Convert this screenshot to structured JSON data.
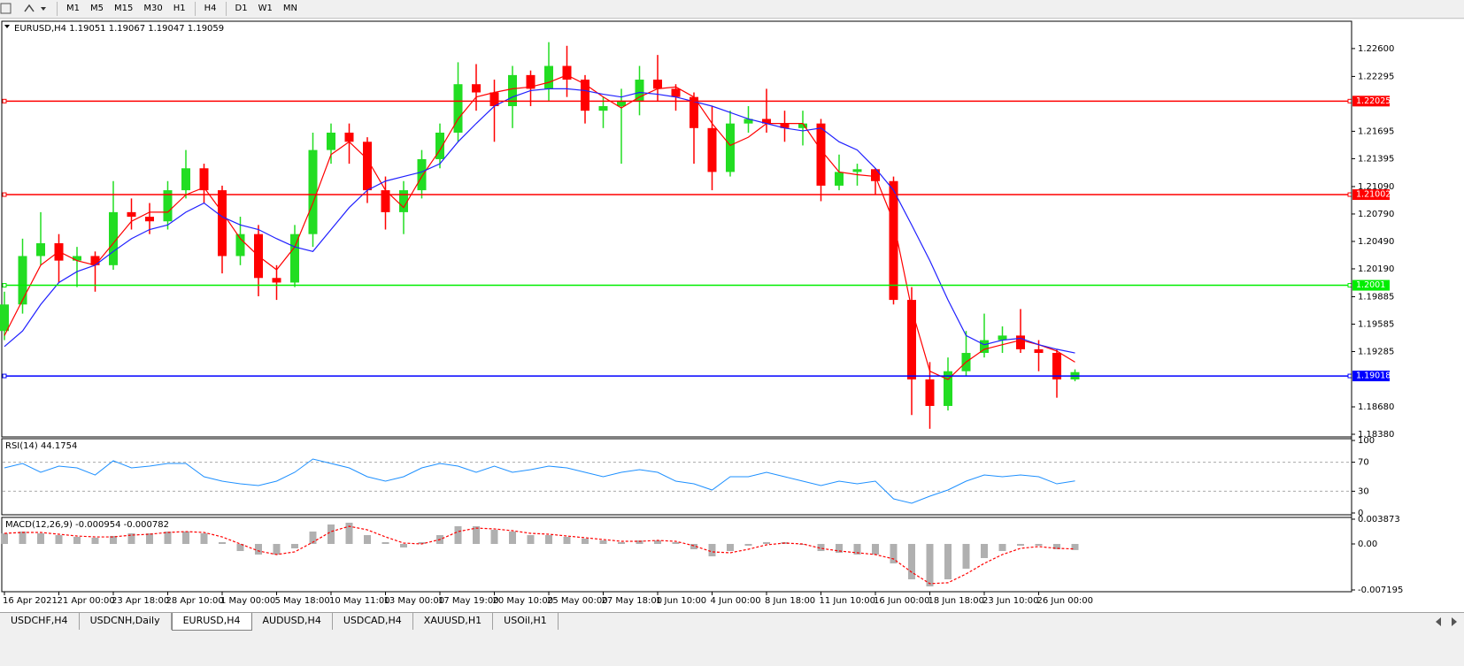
{
  "toolbar": {
    "timeframes": [
      "M1",
      "M5",
      "M15",
      "M30",
      "H1",
      "H4",
      "D1",
      "W1",
      "MN"
    ]
  },
  "tabs": {
    "items": [
      "USDCHF,H4",
      "USDCNH,Daily",
      "EURUSD,H4",
      "AUDUSD,H4",
      "USDCAD,H4",
      "XAUUSD,H1",
      "USOil,H1"
    ],
    "active": 2
  },
  "chart_data": [
    {
      "type": "candlestick",
      "title": "EURUSD,H4  1.19051 1.19067 1.19047 1.19059",
      "categories": [
        "16 Apr 2021",
        null,
        null,
        "21 Apr 00:00",
        null,
        null,
        "23 Apr 18:00",
        null,
        null,
        "28 Apr 10:00",
        null,
        null,
        "1 May 00:00",
        null,
        null,
        "5 May 18:00",
        null,
        null,
        "10 May 11:00",
        null,
        null,
        "13 May 00:00",
        null,
        null,
        "17 May 19:00",
        null,
        null,
        "20 May 10:00",
        null,
        null,
        "25 May 00:00",
        null,
        null,
        "27 May 18:00",
        null,
        null,
        "1 Jun 10:00",
        null,
        null,
        "4 Jun 00:00",
        null,
        null,
        "8 Jun 18:00",
        null,
        null,
        "11 Jun 10:00",
        null,
        null,
        "16 Jun 00:00",
        null,
        null,
        "18 Jun 18:00",
        null,
        null,
        "23 Jun 10:00",
        null,
        null,
        "26 Jun 00:00",
        null,
        null
      ],
      "open": [
        1.1951,
        1.198,
        1.2033,
        1.2047,
        1.2028,
        1.2033,
        1.2023,
        1.2081,
        1.2076,
        1.2071,
        1.2105,
        1.2129,
        1.2105,
        1.2033,
        1.2057,
        1.2009,
        1.2004,
        1.2057,
        1.2149,
        1.2168,
        1.2158,
        1.2105,
        1.2081,
        1.2105,
        1.2139,
        1.2168,
        1.2221,
        1.2212,
        1.2197,
        1.2231,
        1.2216,
        1.2241,
        1.2226,
        1.2192,
        1.2197,
        1.2202,
        1.2226,
        1.2216,
        1.2207,
        1.2173,
        1.2125,
        1.2178,
        1.2183,
        1.2178,
        1.2173,
        1.2178,
        1.211,
        1.2125,
        1.2128,
        1.2115,
        1.1985,
        1.1898,
        1.1869,
        1.1907,
        1.1927,
        1.1941,
        1.1946,
        1.1931,
        1.1927,
        1.1898
      ],
      "high": [
        1.1994,
        1.2052,
        1.2081,
        1.2057,
        1.2043,
        1.2038,
        1.2115,
        1.2096,
        1.2091,
        1.2115,
        1.2149,
        1.2134,
        1.211,
        1.2076,
        1.2067,
        1.2023,
        1.2067,
        1.2168,
        1.2178,
        1.2178,
        1.2163,
        1.212,
        1.2115,
        1.2149,
        1.2178,
        1.2245,
        1.2243,
        1.2226,
        1.2241,
        1.2236,
        1.2267,
        1.2263,
        1.2231,
        1.2207,
        1.2216,
        1.2241,
        1.2253,
        1.2221,
        1.2212,
        1.2197,
        1.2192,
        1.2197,
        1.2216,
        1.2192,
        1.2192,
        1.2183,
        1.2144,
        1.2134,
        1.2129,
        1.212,
        1.1999,
        1.1917,
        1.1922,
        1.1951,
        1.197,
        1.1956,
        1.1975,
        1.1941,
        1.1931,
        1.1909
      ],
      "low": [
        1.1941,
        1.197,
        1.2023,
        1.2004,
        1.1999,
        1.1994,
        1.2018,
        1.2062,
        1.2057,
        1.2062,
        1.2096,
        1.2091,
        1.2014,
        1.2023,
        1.1989,
        1.1985,
        1.1999,
        1.2043,
        1.2134,
        1.2134,
        1.2091,
        1.2062,
        1.2057,
        1.2096,
        1.2129,
        1.2158,
        1.2192,
        1.2158,
        1.2173,
        1.2197,
        1.2202,
        1.2207,
        1.2178,
        1.2173,
        1.2134,
        1.2187,
        1.2202,
        1.2192,
        1.2134,
        1.2105,
        1.212,
        1.2168,
        1.2168,
        1.2158,
        1.2154,
        1.2093,
        1.2105,
        1.211,
        1.21,
        1.198,
        1.1859,
        1.1844,
        1.1864,
        1.1902,
        1.1922,
        1.1927,
        1.1927,
        1.1907,
        1.1878,
        1.1896
      ],
      "close": [
        1.198,
        1.2033,
        1.2047,
        1.2028,
        1.2033,
        1.2023,
        1.2081,
        1.2076,
        1.2071,
        1.2105,
        1.2129,
        1.2105,
        1.2033,
        1.2057,
        1.2009,
        1.2004,
        1.2057,
        1.2149,
        1.2168,
        1.2158,
        1.2105,
        1.2081,
        1.2105,
        1.2139,
        1.2168,
        1.2221,
        1.2212,
        1.2197,
        1.2231,
        1.2216,
        1.2241,
        1.2226,
        1.2192,
        1.2197,
        1.2202,
        1.2226,
        1.2216,
        1.2207,
        1.2173,
        1.2125,
        1.2178,
        1.2183,
        1.2178,
        1.2173,
        1.2178,
        1.211,
        1.2125,
        1.2128,
        1.2115,
        1.1985,
        1.1898,
        1.1869,
        1.1907,
        1.1927,
        1.1941,
        1.1946,
        1.1931,
        1.1927,
        1.1898,
        1.1906
      ],
      "up_color": "#22dd22",
      "down_color": "#ff0000",
      "series": [
        {
          "color": "#ff0000",
          "values": [
            1.1946,
            1.1985,
            1.2023,
            1.2038,
            1.2028,
            1.2023,
            1.2047,
            1.2071,
            1.2081,
            1.2081,
            1.21,
            1.2108,
            1.2081,
            1.2052,
            1.2033,
            1.2018,
            1.2043,
            1.2091,
            1.2144,
            1.2158,
            1.2139,
            1.2105,
            1.2086,
            1.212,
            1.2149,
            1.2183,
            1.2207,
            1.2212,
            1.2216,
            1.2218,
            1.2223,
            1.2231,
            1.2221,
            1.2207,
            1.2195,
            1.2207,
            1.2216,
            1.2218,
            1.2207,
            1.2178,
            1.2154,
            1.2163,
            1.2178,
            1.2178,
            1.2178,
            1.2149,
            1.2125,
            1.2122,
            1.212,
            1.2071,
            1.1975,
            1.1907,
            1.1898,
            1.1917,
            1.1931,
            1.1936,
            1.1941,
            1.1936,
            1.1929,
            1.1917
          ]
        },
        {
          "color": "#2020ff",
          "values": [
            1.1934,
            1.1951,
            1.198,
            1.2004,
            1.2016,
            1.2023,
            1.2038,
            1.2052,
            1.2062,
            1.2067,
            1.2081,
            1.2091,
            1.2076,
            1.2067,
            1.2062,
            1.2052,
            1.2043,
            1.2038,
            1.2062,
            1.2086,
            1.2105,
            1.2115,
            1.212,
            1.2125,
            1.2134,
            1.2158,
            1.2178,
            1.2197,
            1.2207,
            1.2214,
            1.2216,
            1.2216,
            1.2214,
            1.221,
            1.2207,
            1.2212,
            1.221,
            1.2207,
            1.2202,
            1.2197,
            1.219,
            1.2183,
            1.2178,
            1.2173,
            1.217,
            1.2173,
            1.2158,
            1.2149,
            1.2129,
            1.2105,
            1.2067,
            1.2028,
            1.1985,
            1.1946,
            1.1936,
            1.1941,
            1.1943,
            1.1936,
            1.1931,
            1.1927
          ]
        }
      ],
      "ylim": [
        1.18351,
        1.22899
      ],
      "yticks": [
        {
          "value": 1.226,
          "label": "1.22600"
        },
        {
          "value": 1.22295,
          "label": "1.22295"
        },
        {
          "value": 1.21695,
          "label": "1.21695"
        },
        {
          "value": 1.21395,
          "label": "1.21395"
        },
        {
          "value": 1.2109,
          "label": "1.21090"
        },
        {
          "value": 1.2079,
          "label": "1.20790"
        },
        {
          "value": 1.2049,
          "label": "1.20490"
        },
        {
          "value": 1.2019,
          "label": "1.20190"
        },
        {
          "value": 1.19885,
          "label": "1.19885"
        },
        {
          "value": 1.19585,
          "label": "1.19585"
        },
        {
          "value": 1.19285,
          "label": "1.19285"
        },
        {
          "value": 1.1868,
          "label": "1.18680"
        },
        {
          "value": 1.1838,
          "label": "1.18380"
        }
      ],
      "levels": [
        {
          "value": 1.22025,
          "color": "#ff0000"
        },
        {
          "value": 1.21002,
          "color": "#ff0000"
        },
        {
          "value": 1.2001,
          "color": "#00ee00"
        },
        {
          "value": 1.19018,
          "color": "#0000ff"
        }
      ]
    },
    {
      "type": "line",
      "title": "RSI(14) 44.1754",
      "color": "#1e90ff",
      "values": [
        62.2,
        68.3,
        56.1,
        64.6,
        62.2,
        52.4,
        72.0,
        62.2,
        64.6,
        68.3,
        68.3,
        50.0,
        43.9,
        40.2,
        37.8,
        43.9,
        56.1,
        74.4,
        68.3,
        62.2,
        50.0,
        43.9,
        50.0,
        62.2,
        68.3,
        64.6,
        56.1,
        64.6,
        56.1,
        59.8,
        64.6,
        62.2,
        56.1,
        50.0,
        56.1,
        59.8,
        56.1,
        43.9,
        40.2,
        31.7,
        50.0,
        50.0,
        56.1,
        50.0,
        43.9,
        37.8,
        43.9,
        40.2,
        43.9,
        19.5,
        13.4,
        23.2,
        31.7,
        43.9,
        52.4,
        50.0,
        52.4,
        50.0,
        40.2,
        44.2
      ],
      "ylim": [
        0,
        100
      ],
      "yticks": [
        100,
        70,
        30,
        0
      ],
      "levels": [
        70,
        30
      ]
    },
    {
      "type": "macd",
      "title": "MACD(12,26,9) -0.000954 -0.000782",
      "histogram": {
        "color": "#b0b0b0",
        "values": [
          0.00166,
          0.00194,
          0.00166,
          0.00138,
          0.00111,
          0.00097,
          0.00125,
          0.00166,
          0.00166,
          0.00194,
          0.00194,
          0.00166,
          0.00028,
          -0.00111,
          -0.00166,
          -0.00166,
          -0.00069,
          0.00194,
          0.00304,
          0.00332,
          0.00138,
          0.00028,
          -0.00055,
          0.00028,
          0.00138,
          0.00277,
          0.00277,
          0.00221,
          0.00194,
          0.00138,
          0.00138,
          0.00111,
          0.00083,
          0.00055,
          0.00028,
          0.00055,
          0.00055,
          0.00028,
          -0.00083,
          -0.00194,
          -0.00111,
          -0.00028,
          0.00028,
          0.00028,
          -0.00014,
          -0.00111,
          -0.00138,
          -0.00166,
          -0.00166,
          -0.00304,
          -0.00553,
          -0.00664,
          -0.00553,
          -0.00387,
          -0.00221,
          -0.00111,
          -0.00028,
          -0.00028,
          -0.00083,
          -0.000954
        ]
      },
      "signal": {
        "color": "#ff0000",
        "values": [
          0.00166,
          0.0018,
          0.0018,
          0.00152,
          0.00124,
          0.0011,
          0.0011,
          0.00138,
          0.00152,
          0.0018,
          0.00193,
          0.0018,
          0.0011,
          0,
          -0.0011,
          -0.00166,
          -0.00124,
          0.00028,
          0.00193,
          0.00276,
          0.00221,
          0.0011,
          0.00014,
          0,
          0.00069,
          0.00193,
          0.00248,
          0.00235,
          0.00207,
          0.00166,
          0.00152,
          0.00124,
          0.00097,
          0.00069,
          0.00041,
          0.00041,
          0.00055,
          0.00041,
          -0.00028,
          -0.00124,
          -0.00138,
          -0.00083,
          -0.00014,
          0.00014,
          0,
          -0.00069,
          -0.0011,
          -0.00138,
          -0.00166,
          -0.00235,
          -0.00442,
          -0.00621,
          -0.00607,
          -0.00469,
          -0.00304,
          -0.00166,
          -0.00069,
          -0.00041,
          -0.00069,
          -0.000782
        ]
      },
      "ylim": [
        -0.007195,
        0.003873
      ],
      "yticks": [
        0.003873,
        {
          "value": 0,
          "label": "0.00"
        },
        -0.007195
      ]
    }
  ]
}
